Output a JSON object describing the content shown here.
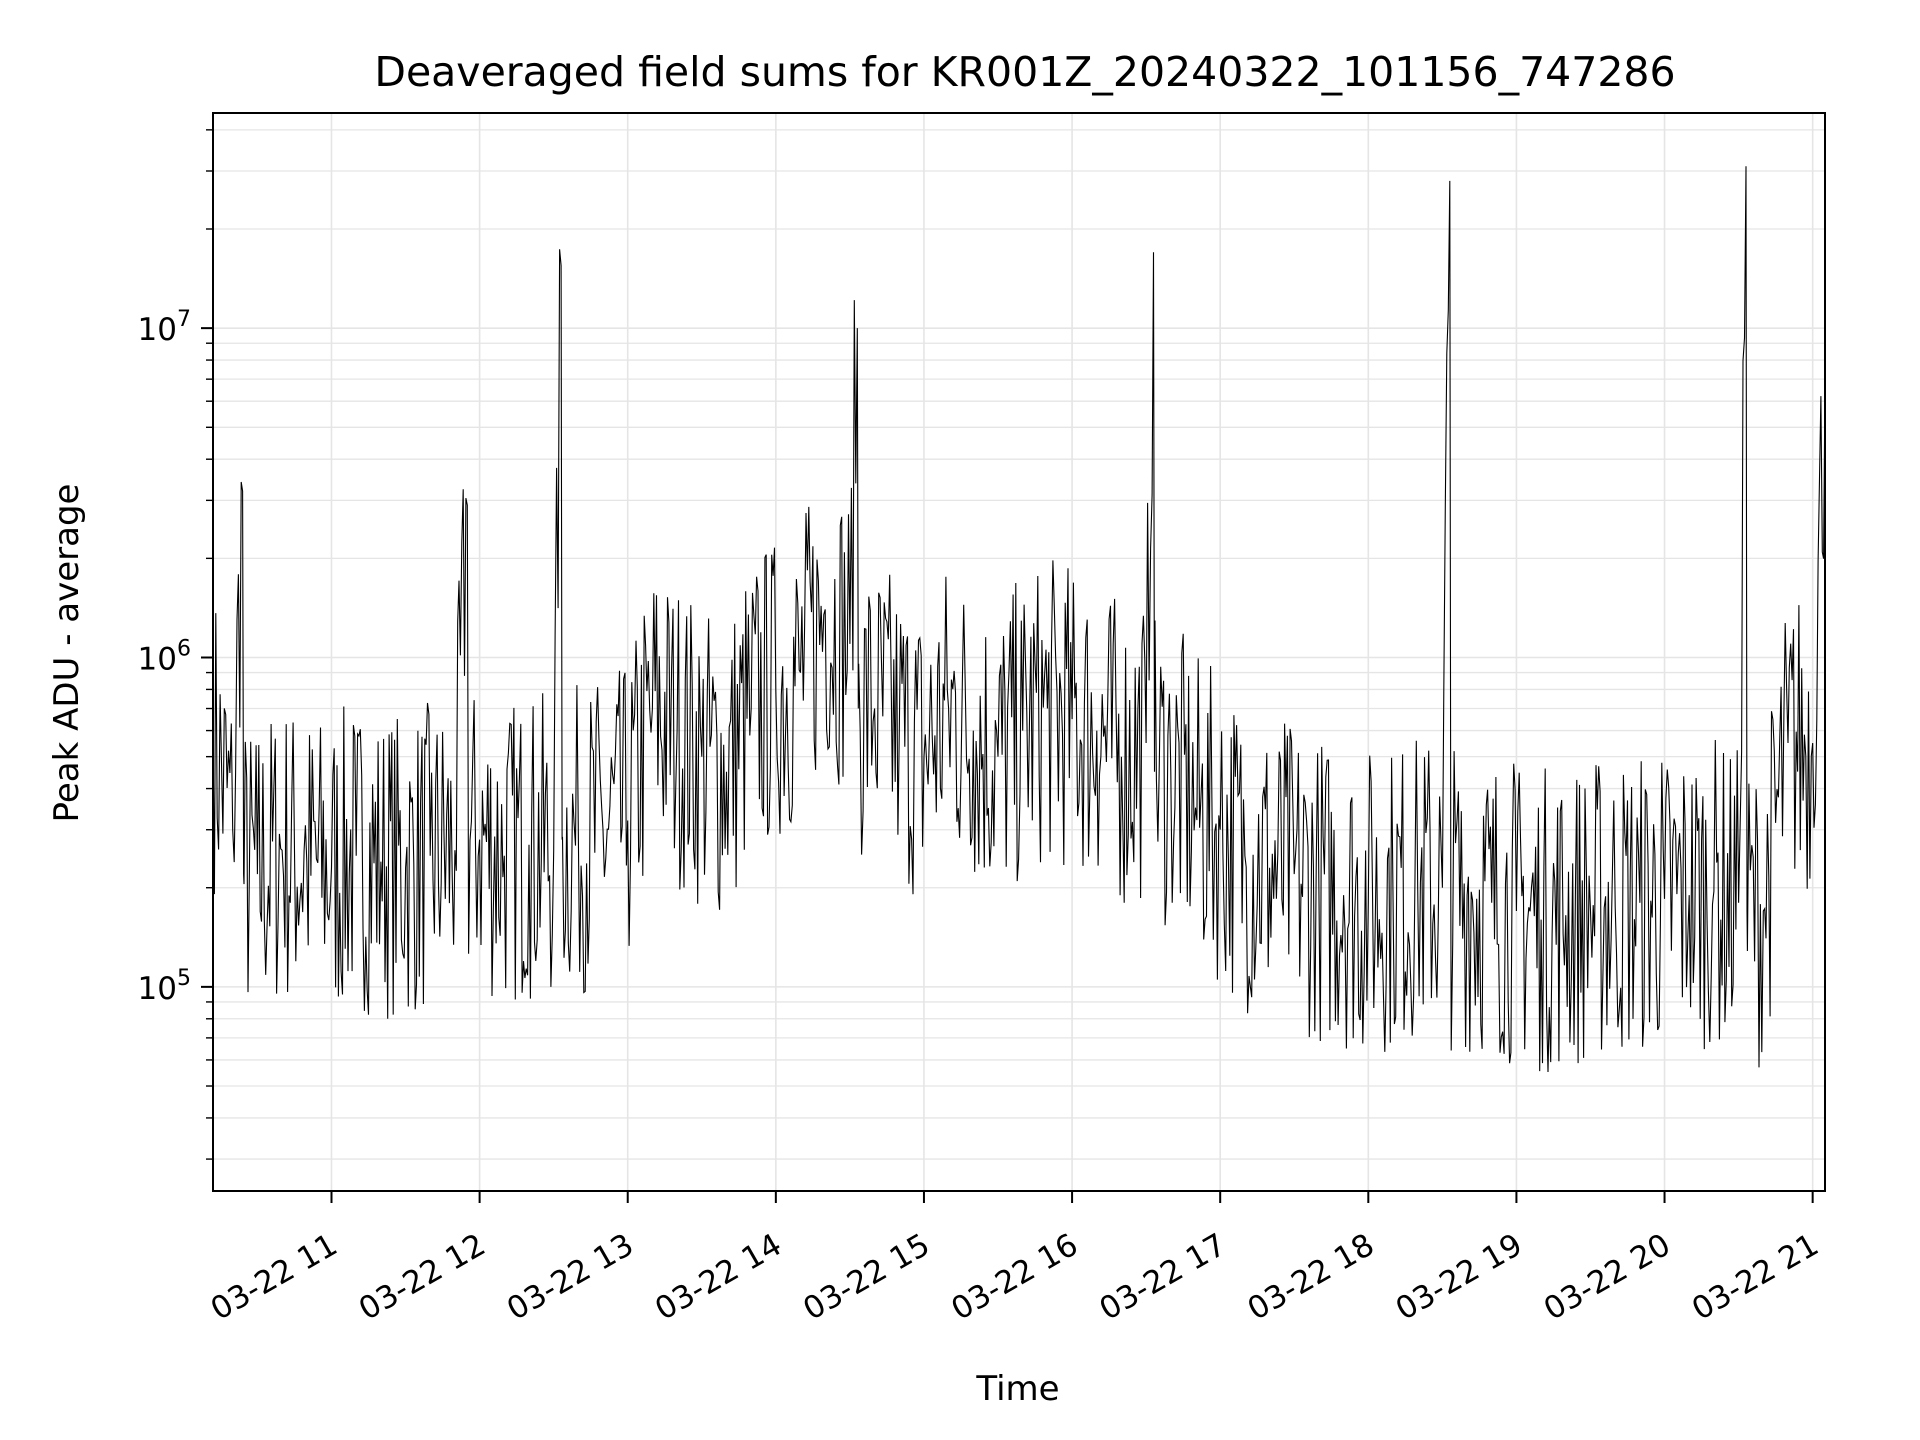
{
  "chart_data": {
    "type": "line",
    "title": "Deaveraged field sums for KR001Z_20240322_101156_747286",
    "xlabel": "Time",
    "ylabel": "Peak ADU - average",
    "xlim": [
      "2024-03-22 10:12",
      "2024-03-22 21:05"
    ],
    "ylim": [
      24000,
      45000000
    ],
    "yscale": "log",
    "grid": true,
    "line_color": "#000000",
    "grid_color": "#e5e5e5",
    "x_ticks": [
      {
        "t": "2024-03-22 11:00",
        "label": "03-22 11"
      },
      {
        "t": "2024-03-22 12:00",
        "label": "03-22 12"
      },
      {
        "t": "2024-03-22 13:00",
        "label": "03-22 13"
      },
      {
        "t": "2024-03-22 14:00",
        "label": "03-22 14"
      },
      {
        "t": "2024-03-22 15:00",
        "label": "03-22 15"
      },
      {
        "t": "2024-03-22 16:00",
        "label": "03-22 16"
      },
      {
        "t": "2024-03-22 17:00",
        "label": "03-22 17"
      },
      {
        "t": "2024-03-22 18:00",
        "label": "03-22 18"
      },
      {
        "t": "2024-03-22 19:00",
        "label": "03-22 19"
      },
      {
        "t": "2024-03-22 20:00",
        "label": "03-22 20"
      },
      {
        "t": "2024-03-22 21:00",
        "label": "03-22 21"
      }
    ],
    "y_ticks": [
      {
        "v": 100000,
        "base": "10",
        "exp": "5"
      },
      {
        "v": 1000000,
        "base": "10",
        "exp": "6"
      },
      {
        "v": 10000000,
        "base": "10",
        "exp": "7"
      }
    ],
    "series": [
      {
        "x": [
          "2024-03-22 10:12",
          "2024-03-22 10:20",
          "2024-03-22 10:24",
          "2024-03-22 10:30",
          "2024-03-22 10:40",
          "2024-03-22 10:50",
          "2024-03-22 11:00",
          "2024-03-22 11:10",
          "2024-03-22 11:20",
          "2024-03-22 11:30",
          "2024-03-22 11:40",
          "2024-03-22 11:50",
          "2024-03-22 11:55",
          "2024-03-22 12:00",
          "2024-03-22 12:10",
          "2024-03-22 12:20",
          "2024-03-22 12:30",
          "2024-03-22 12:33",
          "2024-03-22 12:40",
          "2024-03-22 12:50",
          "2024-03-22 13:00",
          "2024-03-22 13:10",
          "2024-03-22 13:20",
          "2024-03-22 13:30",
          "2024-03-22 13:40",
          "2024-03-22 13:50",
          "2024-03-22 14:00",
          "2024-03-22 14:10",
          "2024-03-22 14:20",
          "2024-03-22 14:30",
          "2024-03-22 14:33",
          "2024-03-22 14:40",
          "2024-03-22 14:50",
          "2024-03-22 15:00",
          "2024-03-22 15:10",
          "2024-03-22 15:20",
          "2024-03-22 15:30",
          "2024-03-22 15:40",
          "2024-03-22 15:50",
          "2024-03-22 16:00",
          "2024-03-22 16:10",
          "2024-03-22 16:20",
          "2024-03-22 16:30",
          "2024-03-22 16:33",
          "2024-03-22 16:40",
          "2024-03-22 16:50",
          "2024-03-22 17:00",
          "2024-03-22 17:10",
          "2024-03-22 17:20",
          "2024-03-22 17:30",
          "2024-03-22 17:40",
          "2024-03-22 17:50",
          "2024-03-22 18:00",
          "2024-03-22 18:10",
          "2024-03-22 18:20",
          "2024-03-22 18:30",
          "2024-03-22 18:33",
          "2024-03-22 18:40",
          "2024-03-22 18:50",
          "2024-03-22 19:00",
          "2024-03-22 19:10",
          "2024-03-22 19:20",
          "2024-03-22 19:30",
          "2024-03-22 19:40",
          "2024-03-22 19:50",
          "2024-03-22 20:00",
          "2024-03-22 20:10",
          "2024-03-22 20:20",
          "2024-03-22 20:30",
          "2024-03-22 20:33",
          "2024-03-22 20:40",
          "2024-03-22 20:50",
          "2024-03-22 21:00",
          "2024-03-22 21:05"
        ],
        "y": [
          600000,
          300000,
          3200000,
          220000,
          260000,
          240000,
          230000,
          250000,
          240000,
          230000,
          250000,
          260000,
          2900000,
          280000,
          250000,
          270000,
          260000,
          15500000,
          280000,
          300000,
          320000,
          700000,
          600000,
          500000,
          450000,
          700000,
          800000,
          900000,
          1400000,
          1100000,
          10000000,
          700000,
          600000,
          500000,
          700000,
          600000,
          500000,
          600000,
          700000,
          650000,
          600000,
          500000,
          550000,
          17000000,
          450000,
          350000,
          300000,
          250000,
          230000,
          220000,
          200000,
          190000,
          180000,
          190000,
          200000,
          200000,
          28000000,
          190000,
          180000,
          170000,
          160000,
          165000,
          170000,
          175000,
          180000,
          185000,
          190000,
          195000,
          180000,
          31000000,
          170000,
          550000,
          550000,
          7000000
        ]
      }
    ]
  }
}
